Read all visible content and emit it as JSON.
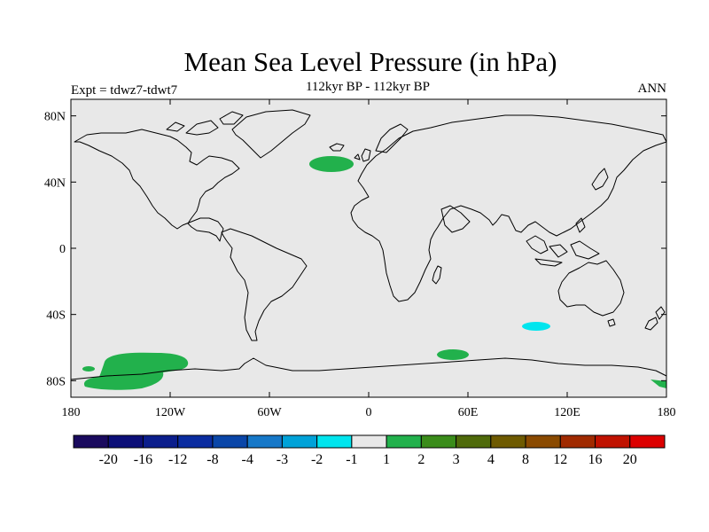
{
  "header": {
    "title": "Mean Sea Level Pressure (in hPa)",
    "subtitle": "112kyr BP - 112kyr BP",
    "left_label": "Expt = tdwz7-tdwt7",
    "right_label": "ANN"
  },
  "map": {
    "projection": "cylindrical equidistant",
    "lon_range": [
      -180,
      180
    ],
    "lat_range": [
      -90,
      90
    ],
    "background_color": "#e8e8e8",
    "coastline_color": "#000000",
    "x_ticks": [
      {
        "lon": -180,
        "label": "180"
      },
      {
        "lon": -120,
        "label": "120W"
      },
      {
        "lon": -60,
        "label": "60W"
      },
      {
        "lon": 0,
        "label": "0"
      },
      {
        "lon": 60,
        "label": "60E"
      },
      {
        "lon": 120,
        "label": "120E"
      },
      {
        "lon": 180,
        "label": "180"
      }
    ],
    "y_ticks": [
      {
        "lat": 80,
        "label": "80N"
      },
      {
        "lat": 40,
        "label": "40N"
      },
      {
        "lat": 0,
        "label": "0"
      },
      {
        "lat": -40,
        "label": "40S"
      },
      {
        "lat": -80,
        "label": "80S"
      }
    ],
    "anomaly_regions": [
      {
        "name": "north-atlantic-positive",
        "lon": -24,
        "lat": 52,
        "sign": "positive",
        "level": "1 to 2",
        "color": "#22b14c"
      },
      {
        "name": "south-pacific-positive",
        "lon": -135,
        "lat": -72,
        "sign": "positive",
        "level": "1 to 2",
        "color": "#22b14c"
      },
      {
        "name": "southern-ocean-positive",
        "lon": 52,
        "lat": -64,
        "sign": "positive",
        "level": "1 to 2",
        "color": "#22b14c"
      },
      {
        "name": "ross-sea-positive",
        "lon": 176,
        "lat": -81,
        "sign": "positive",
        "level": "1 to 2",
        "color": "#22b14c"
      },
      {
        "name": "bellingshausen-positive",
        "lon": -171,
        "lat": -72,
        "sign": "positive",
        "level": "1 to 2",
        "color": "#22b14c"
      },
      {
        "name": "indian-ocean-negative",
        "lon": 102,
        "lat": -47,
        "sign": "negative",
        "level": "-1 to -2",
        "color": "#00e5ee"
      }
    ]
  },
  "colorbar": {
    "labels": [
      "-20",
      "-16",
      "-12",
      "-8",
      "-4",
      "-3",
      "-2",
      "-1",
      "1",
      "2",
      "3",
      "4",
      "8",
      "12",
      "16",
      "20"
    ],
    "colors": [
      "#1a0a5e",
      "#0c0f78",
      "#0b1e8c",
      "#0a2ca0",
      "#0a46a8",
      "#1678c8",
      "#00a2d8",
      "#00e5ee",
      "#e8e8e8",
      "#22b14c",
      "#3a8c1a",
      "#4f6a0a",
      "#6e5a00",
      "#8a4a00",
      "#a02a00",
      "#c01200",
      "#dc0000"
    ]
  }
}
